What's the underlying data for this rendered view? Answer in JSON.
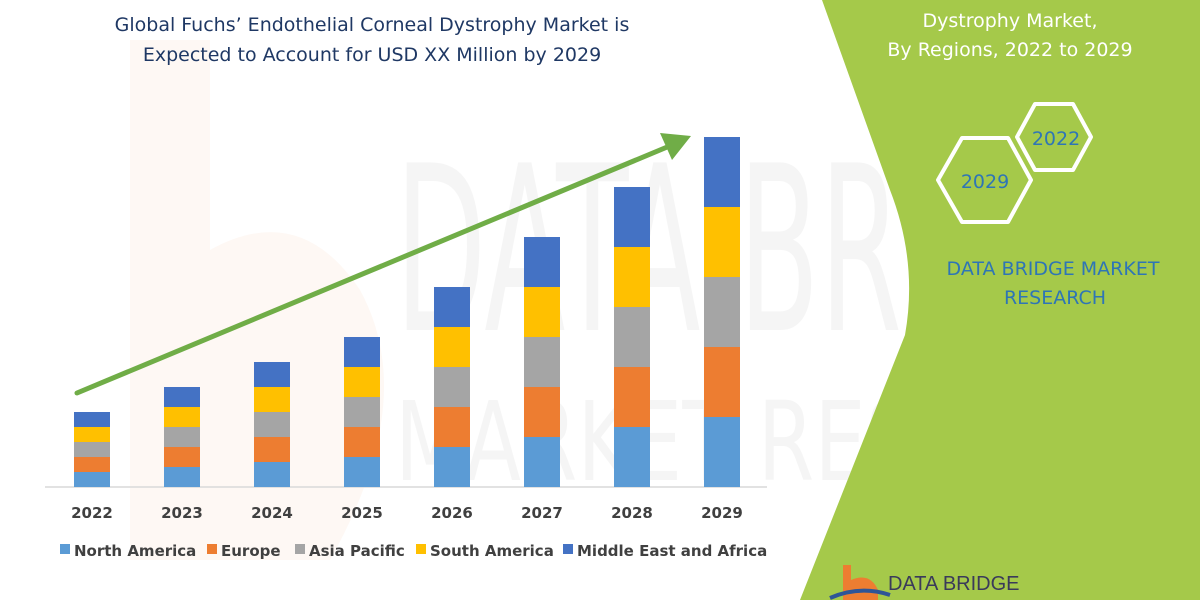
{
  "chart_data": {
    "type": "bar",
    "stacked": true,
    "title": "Global Fuchs’ Endothelial Corneal Dystrophy Market is Expected to Account for USD XX Million by 2029",
    "title_lines": [
      "Global Fuchs’ Endothelial Corneal Dystrophy Market is",
      "Expected to Account for USD XX Million by 2029"
    ],
    "categories": [
      "2022",
      "2023",
      "2024",
      "2025",
      "2026",
      "2027",
      "2028",
      "2029"
    ],
    "series": [
      {
        "name": "North America",
        "color": "#5b9bd5",
        "values": [
          1.5,
          2,
          2.5,
          3,
          4,
          5,
          6,
          7
        ]
      },
      {
        "name": "Europe",
        "color": "#ed7d31",
        "values": [
          1.5,
          2,
          2.5,
          3,
          4,
          5,
          6,
          7
        ]
      },
      {
        "name": "Asia Pacific",
        "color": "#a5a5a5",
        "values": [
          1.5,
          2,
          2.5,
          3,
          4,
          5,
          6,
          7
        ]
      },
      {
        "name": "South America",
        "color": "#ffc000",
        "values": [
          1.5,
          2,
          2.5,
          3,
          4,
          5,
          6,
          7
        ]
      },
      {
        "name": "Middle East and Africa",
        "color": "#4472c4",
        "values": [
          1.5,
          2,
          2.5,
          3,
          4,
          5,
          6,
          7
        ]
      }
    ],
    "xlabel": "",
    "ylabel": "",
    "yaxis_shown": false,
    "grid": false,
    "legend_position": "bottom",
    "trend_arrow_color": "#70ad47"
  },
  "side_panel": {
    "color": "#a5c94a",
    "title_lines": [
      "Dystrophy Market,",
      "By Regions, 2022 to 2029"
    ],
    "hex_labels": [
      "2022",
      "2029"
    ],
    "brand_lines": [
      "DATA BRIDGE MARKET",
      "RESEARCH"
    ],
    "logo_text": "DATA BRIDGE"
  },
  "watermark": [
    "DATA BRIDGE",
    "MARKET RESEARCH"
  ]
}
